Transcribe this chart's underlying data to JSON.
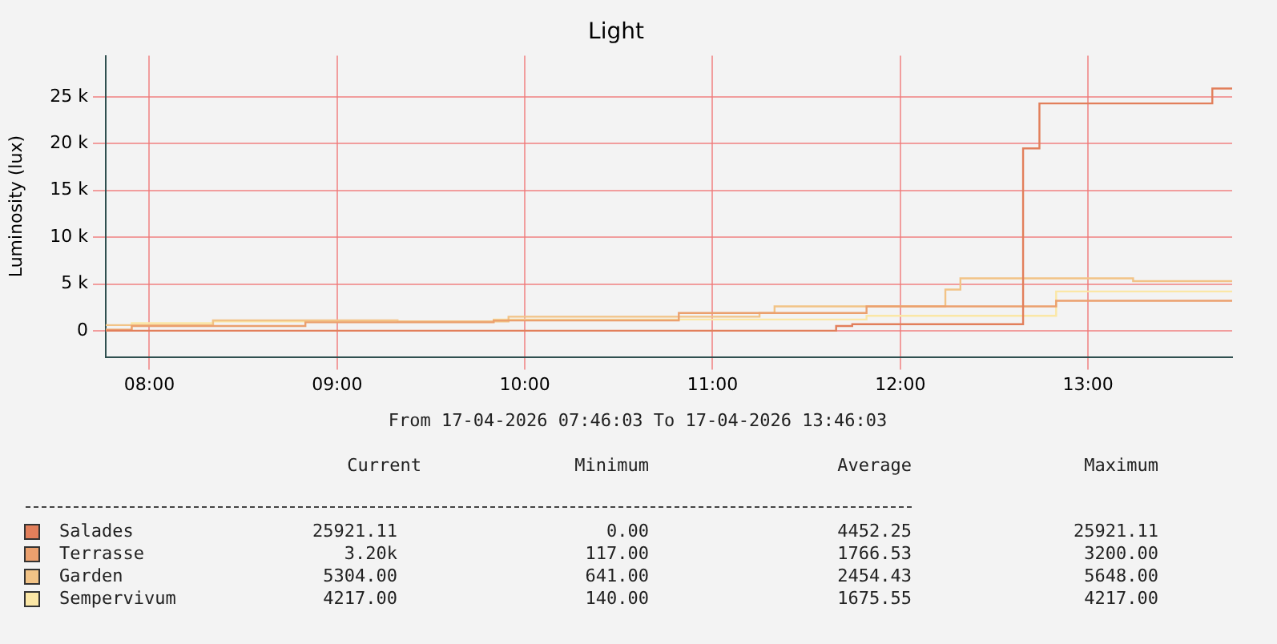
{
  "chart_data": {
    "type": "step",
    "title": "Light",
    "ylabel": "Luminosity (lux)",
    "xlim": [
      7.7675,
      13.7675
    ],
    "xticks": [
      {
        "value": 8,
        "label": "08:00"
      },
      {
        "value": 9,
        "label": "09:00"
      },
      {
        "value": 10,
        "label": "10:00"
      },
      {
        "value": 11,
        "label": "11:00"
      },
      {
        "value": 12,
        "label": "12:00"
      },
      {
        "value": 13,
        "label": "13:00"
      }
    ],
    "ylim": [
      -2800,
      29400
    ],
    "yticks": [
      {
        "value": 0,
        "label": "0"
      },
      {
        "value": 5000,
        "label": "5 k"
      },
      {
        "value": 10000,
        "label": "10 k"
      },
      {
        "value": 15000,
        "label": "15 k"
      },
      {
        "value": 20000,
        "label": "20 k"
      },
      {
        "value": 25000,
        "label": "25 k"
      }
    ],
    "grid": true,
    "legend": "bottom",
    "series": [
      {
        "name": "Salades",
        "color": "#e27f5b",
        "x": [
          7.7675,
          11.658,
          11.744,
          12.654,
          12.741,
          13.662,
          13.7675
        ],
        "values": [
          0,
          500,
          700,
          19500,
          24300,
          25900,
          25900
        ]
      },
      {
        "name": "Terrasse",
        "color": "#eba06e",
        "x": [
          7.7675,
          7.906,
          8.831,
          9.834,
          10.82,
          11.82,
          12.83,
          13.7675
        ],
        "values": [
          100,
          500,
          900,
          1100,
          1900,
          2600,
          3200,
          3200
        ]
      },
      {
        "name": "Garden",
        "color": "#f2c386",
        "x": [
          7.7675,
          8.339,
          9.322,
          9.913,
          10.82,
          11.25,
          11.33,
          12.24,
          12.32,
          13.24,
          13.7675
        ],
        "values": [
          600,
          1100,
          1000,
          1500,
          1500,
          1900,
          2600,
          4400,
          5600,
          5300,
          5300
        ]
      },
      {
        "name": "Sempervivum",
        "color": "#fbe7a6",
        "x": [
          7.7675,
          7.906,
          8.339,
          9.834,
          11.82,
          12.83,
          13.7675
        ],
        "values": [
          100,
          800,
          1000,
          1200,
          1600,
          4200,
          4200
        ]
      }
    ],
    "annotations": [
      "From 17-04-2026 07:46:03 To 17-04-2026 13:46:03",
      "Current",
      "Minimum",
      "Average",
      "Maximum",
      "25921.11",
      "0.00",
      "4452.25",
      "25921.11",
      "3.20k",
      "117.00",
      "1766.53",
      "3200.00",
      "5304.00",
      "641.00",
      "2454.43",
      "5648.00",
      "4217.00",
      "140.00",
      "1675.55",
      "4217.00"
    ]
  }
}
